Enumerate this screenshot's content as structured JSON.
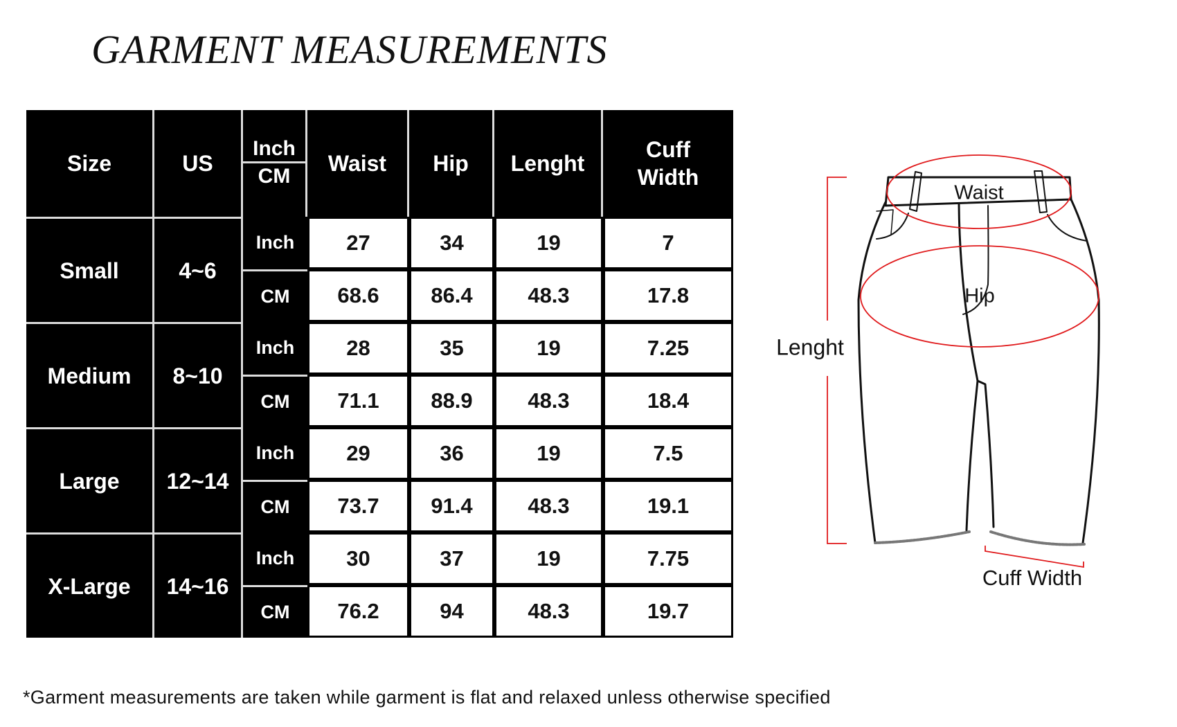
{
  "title": "GARMENT MEASUREMENTS",
  "table": {
    "headers": {
      "size": "Size",
      "us": "US",
      "unit_top": "Inch",
      "unit_bottom": "CM",
      "waist": "Waist",
      "hip": "Hip",
      "length": "Lenght",
      "cuff": "Cuff\nWidth"
    },
    "groups": [
      {
        "size": "Small",
        "us": "4~6",
        "rows": [
          {
            "unit": "Inch",
            "values": [
              "27",
              "34",
              "19",
              "7"
            ]
          },
          {
            "unit": "CM",
            "values": [
              "68.6",
              "86.4",
              "48.3",
              "17.8"
            ]
          }
        ]
      },
      {
        "size": "Medium",
        "us": "8~10",
        "rows": [
          {
            "unit": "Inch",
            "values": [
              "28",
              "35",
              "19",
              "7.25"
            ]
          },
          {
            "unit": "CM",
            "values": [
              "71.1",
              "88.9",
              "48.3",
              "18.4"
            ]
          }
        ]
      },
      {
        "size": "Large",
        "us": "12~14",
        "rows": [
          {
            "unit": "Inch",
            "values": [
              "29",
              "36",
              "19",
              "7.5"
            ]
          },
          {
            "unit": "CM",
            "values": [
              "73.7",
              "91.4",
              "48.3",
              "19.1"
            ]
          }
        ]
      },
      {
        "size": "X-Large",
        "us": "14~16",
        "rows": [
          {
            "unit": "Inch",
            "values": [
              "30",
              "37",
              "19",
              "7.75"
            ]
          },
          {
            "unit": "CM",
            "values": [
              "76.2",
              "94",
              "48.3",
              "19.7"
            ]
          }
        ]
      }
    ]
  },
  "diagram": {
    "waist_label": "Waist",
    "hip_label": "Hip",
    "length_label": "Lenght",
    "cuff_label": "Cuff Width",
    "accent_color": "#e0191b"
  },
  "footnote": "*Garment measurements are taken while garment is flat and relaxed unless otherwise specified"
}
